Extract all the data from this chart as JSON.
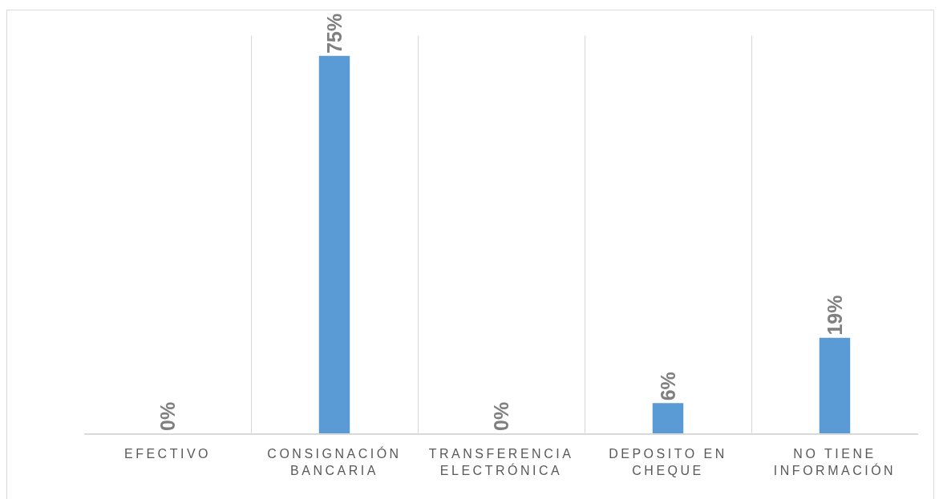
{
  "chart_data": {
    "type": "bar",
    "categories": [
      "EFECTIVO",
      "CONSIGNACIÓN BANCARIA",
      "TRANSFERENCIA ELECTRÓNICA",
      "DEPOSITO EN CHEQUE",
      "NO TIENE INFORMACIÓN"
    ],
    "values": [
      0,
      75,
      0,
      6,
      19
    ],
    "value_labels": [
      "0%",
      "75%",
      "0%",
      "6%",
      "19%"
    ],
    "color": "#5b9bd5",
    "grid": "x",
    "tick_labels": "x"
  }
}
